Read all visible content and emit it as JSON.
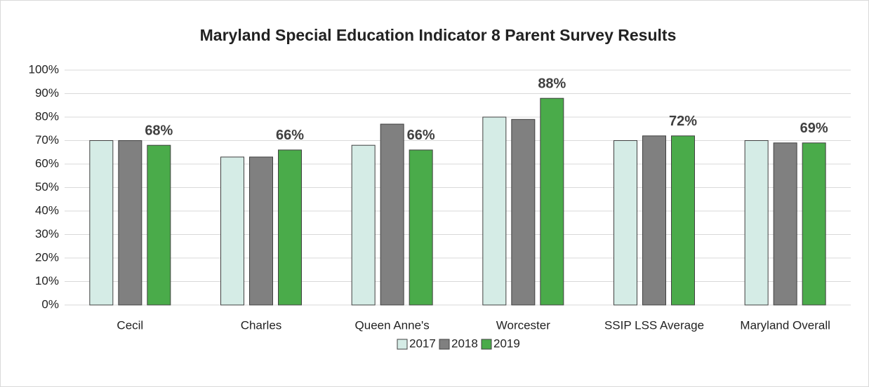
{
  "chart_data": {
    "type": "bar",
    "title": "Maryland Special Education Indicator 8 Parent Survey Results",
    "categories": [
      "Cecil",
      "Charles",
      "Queen Anne's",
      "Worcester",
      "SSIP LSS Average",
      "Maryland Overall"
    ],
    "series": [
      {
        "name": "2017",
        "color": "#d5ece6",
        "values": [
          70,
          63,
          68,
          80,
          70,
          70
        ]
      },
      {
        "name": "2018",
        "color": "#808080",
        "values": [
          70,
          63,
          77,
          79,
          72,
          69
        ]
      },
      {
        "name": "2019",
        "color": "#4aab4a",
        "values": [
          68,
          66,
          66,
          88,
          72,
          69
        ],
        "value_labels": [
          "68%",
          "66%",
          "66%",
          "88%",
          "72%",
          "69%"
        ]
      }
    ],
    "ylim": [
      0,
      100
    ],
    "yticks": [
      {
        "value": 0,
        "label": "0%"
      },
      {
        "value": 10,
        "label": "10%"
      },
      {
        "value": 20,
        "label": "20%"
      },
      {
        "value": 30,
        "label": "30%"
      },
      {
        "value": 40,
        "label": "40%"
      },
      {
        "value": 50,
        "label": "50%"
      },
      {
        "value": 60,
        "label": "60%"
      },
      {
        "value": 70,
        "label": "70%"
      },
      {
        "value": 80,
        "label": "80%"
      },
      {
        "value": 90,
        "label": "90%"
      },
      {
        "value": 100,
        "label": "100%"
      }
    ],
    "grid": true,
    "legend": "bottom"
  }
}
